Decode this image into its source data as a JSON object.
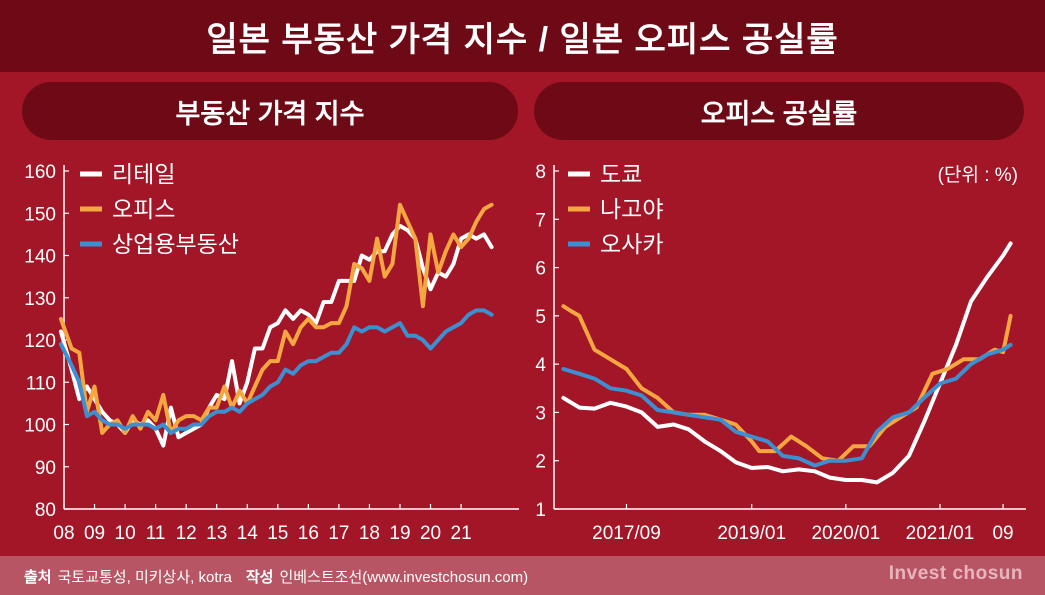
{
  "title": "일본 부동산 가격 지수 / 일본 오피스 공실률",
  "panels": {
    "left": "부동산 가격 지수",
    "right": "오피스 공실률"
  },
  "footer": {
    "source_label": "출처",
    "source_text": "국토교통성, 미키상사, kotra",
    "author_label": "작성",
    "author_text": "인베스트조선(www.investchosun.com)",
    "brand": "Invest chosun"
  },
  "colors": {
    "background": "#a31628",
    "header": "#6e0a15",
    "series_white": "#ffffff",
    "series_orange": "#f4a640",
    "series_blue": "#3c8fd0"
  },
  "chart_data": [
    {
      "type": "line",
      "title": "부동산 가격 지수",
      "ylim": [
        80,
        160
      ],
      "yticks": [
        "80",
        "90",
        "100",
        "110",
        "120",
        "130",
        "140",
        "150",
        "160"
      ],
      "xlim": [
        2008,
        2022.7
      ],
      "xticks": [
        "08",
        "09",
        "10",
        "11",
        "12",
        "13",
        "14",
        "15",
        "16",
        "17",
        "18",
        "19",
        "20",
        "21"
      ],
      "legend_position": "top-left",
      "series": [
        {
          "name": "리테일",
          "x": [
            2007.9,
            2008.25,
            2008.5,
            2008.75,
            2009,
            2009.25,
            2009.5,
            2009.75,
            2010,
            2010.25,
            2010.5,
            2010.75,
            2011,
            2011.25,
            2011.5,
            2011.75,
            2012,
            2012.25,
            2012.5,
            2012.75,
            2013,
            2013.25,
            2013.5,
            2013.75,
            2014,
            2014.25,
            2014.5,
            2014.75,
            2015,
            2015.25,
            2015.5,
            2015.75,
            2016,
            2016.25,
            2016.5,
            2016.75,
            2017,
            2017.25,
            2017.5,
            2017.75,
            2018,
            2018.25,
            2018.5,
            2018.75,
            2019,
            2019.25,
            2019.5,
            2019.75,
            2020,
            2020.25,
            2020.5,
            2020.75,
            2021,
            2021.25,
            2021.5,
            2021.75,
            2022
          ],
          "values": [
            122,
            113,
            106,
            109,
            106,
            103,
            101,
            100,
            98,
            101,
            100,
            101,
            99,
            95,
            104,
            97,
            98,
            99,
            100,
            104,
            107,
            106,
            115,
            105,
            110,
            118,
            118,
            123,
            124,
            127,
            125,
            127,
            126,
            124,
            129,
            129,
            134,
            134,
            134,
            140,
            139,
            141,
            141,
            145,
            147,
            146,
            144,
            137,
            132,
            136,
            135,
            138,
            144,
            145,
            144,
            145,
            142
          ]
        },
        {
          "name": "오피스",
          "x": [
            2007.9,
            2008.25,
            2008.5,
            2008.75,
            2009,
            2009.25,
            2009.5,
            2009.75,
            2010,
            2010.25,
            2010.5,
            2010.75,
            2011,
            2011.25,
            2011.5,
            2011.75,
            2012,
            2012.25,
            2012.5,
            2012.75,
            2013,
            2013.25,
            2013.5,
            2013.75,
            2014,
            2014.25,
            2014.5,
            2014.75,
            2015,
            2015.25,
            2015.5,
            2015.75,
            2016,
            2016.25,
            2016.5,
            2016.75,
            2017,
            2017.25,
            2017.5,
            2017.75,
            2018,
            2018.25,
            2018.5,
            2018.75,
            2019,
            2019.25,
            2019.5,
            2019.75,
            2020,
            2020.25,
            2020.5,
            2020.75,
            2021,
            2021.25,
            2021.5,
            2021.75,
            2022
          ],
          "values": [
            125,
            118,
            117,
            103,
            109,
            98,
            100,
            101,
            98,
            102,
            99,
            103,
            101,
            107,
            98,
            101,
            102,
            102,
            101,
            104,
            104,
            109,
            104,
            108,
            105,
            109,
            113,
            115,
            115,
            122,
            119,
            123,
            125,
            123,
            123,
            124,
            124,
            128,
            138,
            137,
            134,
            144,
            135,
            138,
            152,
            148,
            144,
            128,
            145,
            136,
            141,
            145,
            142,
            144,
            148,
            151,
            152
          ]
        },
        {
          "name": "상업용부동산",
          "x": [
            2007.9,
            2008.25,
            2008.5,
            2008.75,
            2009,
            2009.25,
            2009.5,
            2009.75,
            2010,
            2010.25,
            2010.5,
            2010.75,
            2011,
            2011.25,
            2011.5,
            2011.75,
            2012,
            2012.25,
            2012.5,
            2012.75,
            2013,
            2013.25,
            2013.5,
            2013.75,
            2014,
            2014.25,
            2014.5,
            2014.75,
            2015,
            2015.25,
            2015.5,
            2015.75,
            2016,
            2016.25,
            2016.5,
            2016.75,
            2017,
            2017.25,
            2017.5,
            2017.75,
            2018,
            2018.25,
            2018.5,
            2018.75,
            2019,
            2019.25,
            2019.5,
            2019.75,
            2020,
            2020.25,
            2020.5,
            2020.75,
            2021,
            2021.25,
            2021.5,
            2021.75,
            2022
          ],
          "values": [
            119,
            114,
            110,
            102,
            103,
            101,
            100,
            100,
            99,
            100,
            100,
            100,
            99,
            100,
            98,
            99,
            99,
            100,
            100,
            102,
            103,
            103,
            104,
            103,
            105,
            106,
            107,
            109,
            110,
            113,
            112,
            114,
            115,
            115,
            116,
            117,
            117,
            119,
            123,
            122,
            123,
            123,
            122,
            123,
            124,
            121,
            121,
            120,
            118,
            120,
            122,
            123,
            124,
            126,
            127,
            127,
            126
          ]
        }
      ]
    },
    {
      "type": "line",
      "title": "오피스 공실률",
      "unit_note": "(단위 : %)",
      "ylim": [
        1,
        8
      ],
      "yticks": [
        "1",
        "2",
        "3",
        "4",
        "5",
        "6",
        "7",
        "8"
      ],
      "xlim": [
        2016.9,
        2021.85
      ],
      "xticks": [
        {
          "label": "2017/09",
          "x": 2017.67
        },
        {
          "label": "2019/01",
          "x": 2019.0
        },
        {
          "label": "2020/01",
          "x": 2020.0
        },
        {
          "label": "2021/01",
          "x": 2021.0
        },
        {
          "label": "09",
          "x": 2021.67
        }
      ],
      "legend_position": "top-left",
      "series": [
        {
          "name": "도쿄",
          "x": [
            2017.0,
            2017.17,
            2017.33,
            2017.5,
            2017.67,
            2017.83,
            2018.0,
            2018.17,
            2018.33,
            2018.5,
            2018.67,
            2018.83,
            2019.0,
            2019.17,
            2019.33,
            2019.5,
            2019.67,
            2019.83,
            2020.0,
            2020.17,
            2020.33,
            2020.5,
            2020.67,
            2020.83,
            2021.0,
            2021.17,
            2021.33,
            2021.5,
            2021.67,
            2021.75
          ],
          "values": [
            3.3,
            3.1,
            3.08,
            3.2,
            3.12,
            3.0,
            2.7,
            2.75,
            2.65,
            2.4,
            2.2,
            1.97,
            1.85,
            1.87,
            1.78,
            1.82,
            1.78,
            1.65,
            1.6,
            1.6,
            1.55,
            1.75,
            2.1,
            2.8,
            3.6,
            4.4,
            5.3,
            5.8,
            6.25,
            6.5
          ]
        },
        {
          "name": "나고야",
          "x": [
            2017.0,
            2017.08,
            2017.17,
            2017.33,
            2017.5,
            2017.67,
            2017.83,
            2018.0,
            2018.17,
            2018.33,
            2018.5,
            2018.67,
            2018.83,
            2019.0,
            2019.08,
            2019.25,
            2019.42,
            2019.58,
            2019.75,
            2019.92,
            2020.08,
            2020.25,
            2020.42,
            2020.58,
            2020.75,
            2020.92,
            2021.08,
            2021.25,
            2021.42,
            2021.58,
            2021.67,
            2021.75
          ],
          "values": [
            5.2,
            5.1,
            5.0,
            4.3,
            4.1,
            3.9,
            3.5,
            3.3,
            3.0,
            2.95,
            2.95,
            2.85,
            2.75,
            2.4,
            2.2,
            2.2,
            2.5,
            2.3,
            2.05,
            2.0,
            2.3,
            2.3,
            2.7,
            2.9,
            3.1,
            3.8,
            3.9,
            4.1,
            4.1,
            4.3,
            4.25,
            5.0
          ]
        },
        {
          "name": "오사카",
          "x": [
            2017.0,
            2017.17,
            2017.33,
            2017.5,
            2017.67,
            2017.83,
            2018.0,
            2018.17,
            2018.33,
            2018.5,
            2018.67,
            2018.83,
            2019.0,
            2019.17,
            2019.33,
            2019.5,
            2019.67,
            2019.83,
            2020.0,
            2020.17,
            2020.33,
            2020.5,
            2020.67,
            2020.83,
            2021.0,
            2021.17,
            2021.33,
            2021.5,
            2021.67,
            2021.75
          ],
          "values": [
            3.9,
            3.8,
            3.7,
            3.5,
            3.45,
            3.35,
            3.05,
            3.0,
            2.95,
            2.9,
            2.85,
            2.6,
            2.5,
            2.4,
            2.1,
            2.05,
            1.9,
            2.0,
            2.0,
            2.05,
            2.6,
            2.9,
            3.0,
            3.3,
            3.6,
            3.7,
            4.0,
            4.2,
            4.3,
            4.4
          ]
        }
      ]
    }
  ]
}
